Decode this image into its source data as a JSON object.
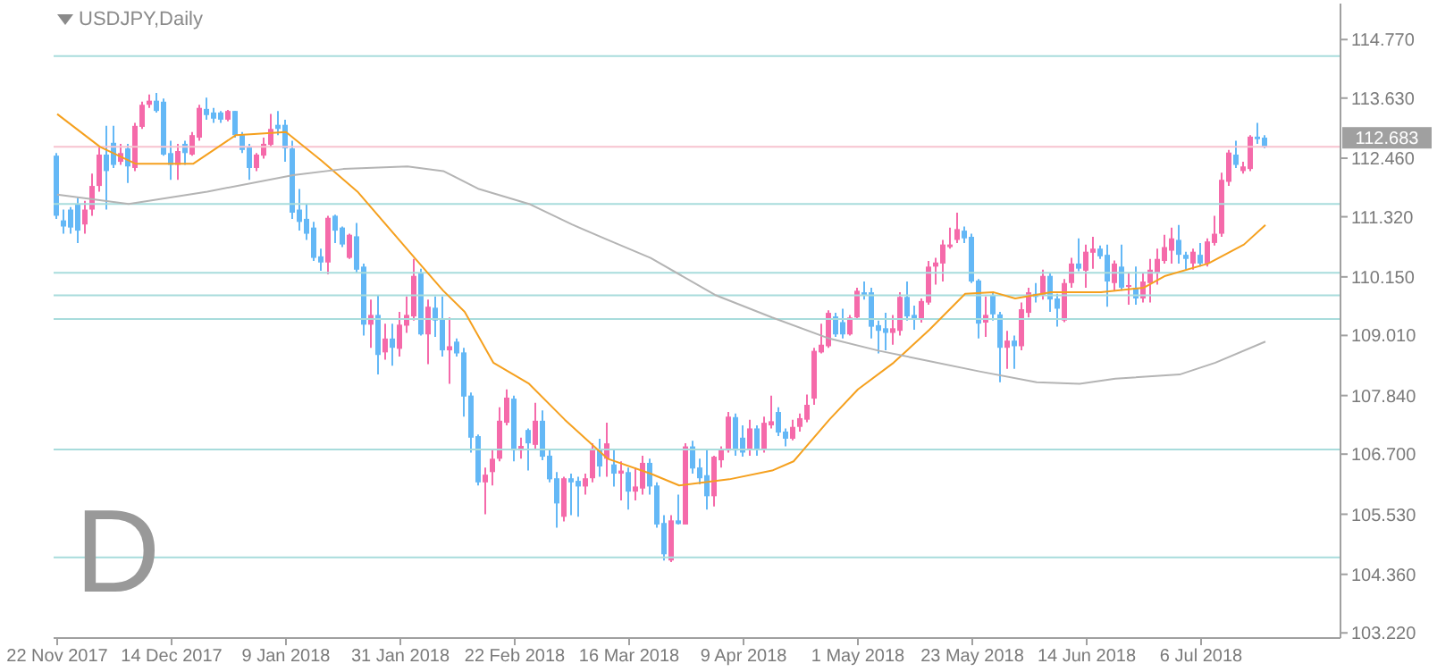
{
  "chart_data": {
    "type": "candlestick",
    "title": "USDJPY,Daily",
    "annotations": [
      "D"
    ],
    "categories": [
      "22 Nov 2017",
      null,
      null,
      null,
      null,
      null,
      null,
      null,
      null,
      null,
      null,
      null,
      null,
      null,
      null,
      null,
      "14 Dec 2017",
      null,
      null,
      null,
      null,
      null,
      null,
      null,
      null,
      null,
      null,
      null,
      null,
      null,
      null,
      null,
      "9 Jan 2018",
      null,
      null,
      null,
      null,
      null,
      null,
      null,
      null,
      null,
      null,
      null,
      null,
      null,
      null,
      null,
      "31 Jan 2018",
      null,
      null,
      null,
      null,
      null,
      null,
      null,
      null,
      null,
      null,
      null,
      null,
      null,
      null,
      null,
      "22 Feb 2018",
      null,
      null,
      null,
      null,
      null,
      null,
      null,
      null,
      null,
      null,
      null,
      null,
      null,
      null,
      null,
      "16 Mar 2018",
      null,
      null,
      null,
      null,
      null,
      null,
      null,
      null,
      null,
      null,
      null,
      null,
      null,
      null,
      null,
      "9 Apr 2018",
      null,
      null,
      null,
      null,
      null,
      null,
      null,
      null,
      null,
      null,
      null,
      null,
      null,
      null,
      null,
      "1 May 2018",
      null,
      null,
      null,
      null,
      null,
      null,
      null,
      null,
      null,
      null,
      null,
      null,
      null,
      null,
      null,
      "23 May 2018",
      null,
      null,
      null,
      null,
      null,
      null,
      null,
      null,
      null,
      null,
      null,
      null,
      null,
      null,
      null,
      "14 Jun 2018",
      null,
      null,
      null,
      null,
      null,
      null,
      null,
      null,
      null,
      null,
      null,
      null,
      null,
      null,
      null,
      "6 Jul 2018",
      null,
      null,
      null,
      null,
      null,
      null,
      null,
      null,
      null
    ],
    "series": [
      {
        "colors": [
          "#64b8f6",
          "#64b8f6",
          "#64b8f6",
          "#64b8f6",
          "#f56aaa",
          "#f56aaa",
          "#f56aaa",
          "#64b8f6",
          "#64b8f6",
          "#f56aaa",
          "#64b8f6",
          "#f56aaa",
          "#f56aaa",
          "#f56aaa",
          "#64b8f6",
          "#64b8f6",
          "#64b8f6",
          "#f56aaa",
          "#64b8f6",
          "#f56aaa",
          "#f56aaa",
          "#64b8f6",
          "#64b8f6",
          "#64b8f6",
          "#f56aaa",
          "#64b8f6",
          "#64b8f6",
          "#64b8f6",
          "#f56aaa",
          "#f56aaa",
          "#f56aaa",
          "#64b8f6",
          "#64b8f6",
          "#64b8f6",
          "#64b8f6",
          "#64b8f6",
          "#64b8f6",
          "#64b8f6",
          "#f56aaa",
          "#64b8f6",
          "#64b8f6",
          "#f56aaa",
          "#64b8f6",
          "#64b8f6",
          "#f56aaa",
          "#64b8f6",
          "#f56aaa",
          "#64b8f6",
          "#f56aaa",
          "#f56aaa",
          "#f56aaa",
          "#64b8f6",
          "#f56aaa",
          "#64b8f6",
          "#64b8f6",
          "#f56aaa",
          "#64b8f6",
          "#64b8f6",
          "#64b8f6",
          "#64b8f6",
          "#f56aaa",
          "#f56aaa",
          "#f56aaa",
          "#f56aaa",
          "#64b8f6",
          "#f56aaa",
          "#64b8f6",
          "#f56aaa",
          "#64b8f6",
          "#64b8f6",
          "#64b8f6",
          "#f56aaa",
          "#64b8f6",
          "#64b8f6",
          "#f56aaa",
          "#f56aaa",
          "#64b8f6",
          "#f56aaa",
          "#64b8f6",
          "#f56aaa",
          "#64b8f6",
          "#f56aaa",
          "#f56aaa",
          "#64b8f6",
          "#64b8f6",
          "#64b8f6",
          "#f56aaa",
          "#64b8f6",
          "#f56aaa",
          "#64b8f6",
          "#64b8f6",
          "#64b8f6",
          "#f56aaa",
          "#f56aaa",
          "#f56aaa",
          "#64b8f6",
          "#64b8f6",
          "#f56aaa",
          "#64b8f6",
          "#f56aaa",
          "#f56aaa",
          "#64b8f6",
          "#64b8f6",
          "#f56aaa",
          "#f56aaa",
          "#f56aaa",
          "#f56aaa",
          "#f56aaa",
          "#f56aaa",
          "#64b8f6",
          "#64b8f6",
          "#f56aaa",
          "#f56aaa",
          "#64b8f6",
          "#64b8f6",
          "#64b8f6",
          "#64b8f6",
          "#f56aaa",
          "#f56aaa",
          "#64b8f6",
          "#64b8f6",
          "#f56aaa",
          "#f56aaa",
          "#f56aaa",
          "#f56aaa",
          "#f56aaa",
          "#f56aaa",
          "#64b8f6",
          "#64b8f6",
          "#64b8f6",
          "#f56aaa",
          "#64b8f6",
          "#64b8f6",
          "#f56aaa",
          "#64b8f6",
          "#f56aaa",
          "#f56aaa",
          "#64b8f6",
          "#f56aaa",
          "#64b8f6",
          "#64b8f6",
          "#f56aaa",
          "#f56aaa",
          "#64b8f6",
          "#f56aaa",
          "#f56aaa",
          "#64b8f6",
          "#64b8f6",
          "#f56aaa",
          "#64b8f6",
          "#f56aaa",
          "#64b8f6",
          "#f56aaa",
          "#f56aaa",
          "#f56aaa",
          "#f56aaa",
          "#f56aaa",
          "#64b8f6",
          "#64b8f6",
          "#f56aaa",
          "#64b8f6",
          "#f56aaa",
          "#f56aaa",
          "#f56aaa",
          "#f56aaa",
          "#64b8f6",
          "#f56aaa",
          "#f56aaa",
          "#64b8f6",
          "#64b8f6"
        ],
        "ohlc": [
          [
            112.51,
            112.56,
            111.28,
            111.34
          ],
          [
            111.25,
            111.46,
            110.99,
            111.13
          ],
          [
            111.46,
            111.51,
            110.99,
            111.11
          ],
          [
            111.57,
            111.69,
            110.81,
            111.05
          ],
          [
            111.17,
            111.63,
            110.99,
            111.46
          ],
          [
            111.46,
            112.16,
            111.34,
            111.92
          ],
          [
            111.92,
            112.68,
            111.81,
            112.53
          ],
          [
            112.53,
            113.09,
            111.46,
            112.21
          ],
          [
            112.76,
            113.09,
            112.27,
            112.33
          ],
          [
            112.39,
            112.74,
            112.33,
            112.56
          ],
          [
            112.65,
            112.74,
            111.98,
            112.3
          ],
          [
            112.27,
            113.15,
            112.21,
            113.09
          ],
          [
            113.07,
            113.56,
            113.03,
            113.5
          ],
          [
            113.5,
            113.7,
            113.44,
            113.58
          ],
          [
            113.58,
            113.73,
            113.35,
            113.38
          ],
          [
            113.56,
            113.62,
            112.51,
            112.53
          ],
          [
            112.56,
            112.8,
            112.04,
            112.33
          ],
          [
            112.33,
            112.74,
            112.04,
            112.6
          ],
          [
            112.74,
            112.8,
            112.33,
            112.56
          ],
          [
            112.53,
            112.97,
            112.51,
            112.91
          ],
          [
            112.86,
            113.5,
            112.8,
            113.44
          ],
          [
            113.42,
            113.64,
            113.21,
            113.3
          ],
          [
            113.35,
            113.44,
            113.15,
            113.23
          ],
          [
            113.35,
            113.38,
            113.15,
            113.21
          ],
          [
            113.21,
            113.4,
            113.18,
            113.38
          ],
          [
            113.38,
            113.38,
            112.86,
            112.91
          ],
          [
            112.91,
            112.97,
            112.56,
            112.62
          ],
          [
            112.68,
            112.74,
            112.04,
            112.27
          ],
          [
            112.27,
            112.56,
            112.21,
            112.53
          ],
          [
            112.51,
            112.86,
            112.45,
            112.74
          ],
          [
            112.72,
            113.32,
            112.68,
            113.03
          ],
          [
            113.11,
            113.38,
            112.91,
            113.03
          ],
          [
            113.11,
            113.21,
            112.39,
            112.65
          ],
          [
            112.65,
            112.8,
            111.28,
            111.4
          ],
          [
            111.46,
            111.86,
            111.05,
            111.22
          ],
          [
            111.28,
            111.57,
            110.87,
            110.99
          ],
          [
            111.11,
            111.22,
            110.46,
            110.52
          ],
          [
            110.55,
            110.7,
            110.27,
            110.43
          ],
          [
            110.43,
            111.34,
            110.2,
            111.3
          ],
          [
            111.34,
            111.36,
            110.81,
            111.05
          ],
          [
            111.11,
            111.13,
            110.73,
            110.78
          ],
          [
            110.52,
            110.99,
            110.5,
            110.97
          ],
          [
            110.94,
            111.2,
            110.23,
            110.29
          ],
          [
            110.35,
            110.41,
            109.01,
            109.22
          ],
          [
            109.22,
            109.71,
            108.77,
            109.41
          ],
          [
            109.41,
            109.8,
            108.25,
            108.63
          ],
          [
            108.68,
            109.24,
            108.54,
            108.95
          ],
          [
            108.95,
            109.24,
            108.42,
            108.77
          ],
          [
            108.75,
            109.47,
            108.6,
            109.22
          ],
          [
            109.2,
            109.77,
            109.06,
            109.41
          ],
          [
            109.38,
            110.5,
            109.3,
            110.17
          ],
          [
            110.23,
            110.31,
            109.01,
            109.03
          ],
          [
            109.03,
            109.71,
            108.45,
            109.57
          ],
          [
            109.55,
            109.77,
            108.98,
            109.3
          ],
          [
            109.33,
            109.77,
            108.6,
            108.72
          ],
          [
            108.72,
            109.36,
            108.07,
            108.8
          ],
          [
            108.89,
            108.95,
            108.6,
            108.66
          ],
          [
            108.68,
            108.77,
            107.43,
            107.82
          ],
          [
            107.84,
            107.9,
            106.73,
            107.02
          ],
          [
            107.05,
            107.08,
            106.09,
            106.15
          ],
          [
            106.15,
            106.44,
            105.53,
            106.3
          ],
          [
            106.35,
            106.79,
            106.09,
            106.61
          ],
          [
            106.61,
            107.61,
            106.56,
            107.35
          ],
          [
            107.31,
            107.96,
            107.26,
            107.8
          ],
          [
            107.78,
            107.84,
            106.56,
            106.77
          ],
          [
            106.77,
            107.02,
            106.61,
            106.86
          ],
          [
            107.17,
            107.2,
            106.38,
            106.91
          ],
          [
            106.88,
            107.7,
            106.79,
            107.35
          ],
          [
            107.35,
            107.55,
            106.58,
            106.65
          ],
          [
            106.67,
            106.79,
            106.15,
            106.21
          ],
          [
            106.23,
            106.35,
            105.27,
            105.74
          ],
          [
            105.48,
            106.26,
            105.39,
            106.23
          ],
          [
            106.23,
            106.32,
            105.51,
            106.15
          ],
          [
            106.18,
            106.26,
            105.48,
            106.07
          ],
          [
            106.07,
            106.32,
            105.91,
            106.23
          ],
          [
            106.23,
            106.91,
            106.15,
            106.81
          ],
          [
            106.79,
            107.0,
            106.26,
            106.46
          ],
          [
            106.61,
            107.31,
            106.26,
            106.91
          ],
          [
            106.5,
            106.79,
            106.07,
            106.32
          ],
          [
            106.32,
            106.56,
            105.8,
            106.38
          ],
          [
            106.35,
            106.44,
            105.62,
            105.97
          ],
          [
            105.97,
            106.44,
            105.8,
            106.07
          ],
          [
            106.03,
            106.67,
            105.91,
            106.53
          ],
          [
            106.53,
            106.61,
            105.91,
            106.07
          ],
          [
            106.09,
            106.15,
            105.27,
            105.33
          ],
          [
            105.36,
            105.51,
            104.63,
            104.75
          ],
          [
            104.63,
            105.51,
            104.6,
            105.41
          ],
          [
            105.41,
            105.91,
            105.33,
            105.34
          ],
          [
            105.33,
            106.91,
            105.33,
            106.85
          ],
          [
            106.85,
            106.96,
            106.32,
            106.42
          ],
          [
            106.44,
            106.61,
            106.11,
            106.23
          ],
          [
            106.29,
            106.79,
            105.62,
            105.88
          ],
          [
            105.88,
            106.67,
            105.68,
            106.65
          ],
          [
            106.58,
            106.85,
            106.44,
            106.79
          ],
          [
            106.77,
            107.52,
            106.73,
            107.43
          ],
          [
            107.42,
            107.49,
            106.67,
            106.77
          ],
          [
            107.02,
            107.26,
            106.65,
            106.73
          ],
          [
            106.79,
            107.37,
            106.67,
            107.2
          ],
          [
            107.2,
            107.26,
            106.67,
            106.79
          ],
          [
            106.79,
            107.43,
            106.73,
            107.31
          ],
          [
            107.26,
            107.84,
            107.2,
            107.34
          ],
          [
            107.52,
            107.61,
            107.05,
            107.12
          ],
          [
            107.14,
            107.2,
            106.85,
            107.0
          ],
          [
            107.0,
            107.37,
            106.97,
            107.23
          ],
          [
            107.23,
            107.49,
            107.14,
            107.4
          ],
          [
            107.37,
            107.86,
            107.32,
            107.66
          ],
          [
            107.78,
            108.77,
            107.66,
            108.71
          ],
          [
            108.68,
            109.24,
            108.66,
            108.83
          ],
          [
            108.8,
            109.5,
            108.77,
            109.45
          ],
          [
            109.38,
            109.45,
            108.98,
            109.03
          ],
          [
            109.27,
            109.53,
            108.95,
            109.03
          ],
          [
            109.03,
            109.41,
            109.01,
            109.36
          ],
          [
            109.36,
            109.94,
            109.33,
            109.88
          ],
          [
            109.85,
            110.06,
            109.71,
            109.8
          ],
          [
            109.85,
            109.94,
            108.95,
            109.18
          ],
          [
            109.21,
            109.3,
            108.66,
            109.1
          ],
          [
            109.15,
            109.45,
            108.72,
            109.06
          ],
          [
            109.06,
            109.41,
            108.83,
            109.15
          ],
          [
            109.1,
            109.85,
            109.01,
            109.76
          ],
          [
            109.76,
            110.06,
            109.3,
            109.38
          ],
          [
            109.41,
            109.59,
            109.12,
            109.33
          ],
          [
            109.33,
            109.73,
            109.26,
            109.68
          ],
          [
            109.65,
            110.46,
            109.61,
            110.35
          ],
          [
            110.35,
            110.52,
            110.0,
            110.43
          ],
          [
            110.41,
            110.87,
            110.06,
            110.78
          ],
          [
            110.73,
            111.11,
            110.7,
            110.78
          ],
          [
            110.87,
            111.4,
            110.81,
            111.08
          ],
          [
            111.05,
            111.13,
            110.81,
            110.9
          ],
          [
            110.93,
            110.99,
            110.03,
            110.06
          ],
          [
            110.08,
            110.11,
            108.95,
            109.24
          ],
          [
            109.26,
            109.77,
            108.98,
            109.41
          ],
          [
            109.8,
            109.85,
            109.3,
            109.42
          ],
          [
            109.42,
            109.47,
            108.1,
            108.77
          ],
          [
            108.77,
            109.1,
            108.36,
            108.91
          ],
          [
            108.91,
            109.01,
            108.36,
            108.8
          ],
          [
            108.8,
            109.65,
            108.72,
            109.52
          ],
          [
            109.45,
            109.94,
            109.36,
            109.85
          ],
          [
            109.82,
            110.03,
            109.65,
            109.76
          ],
          [
            109.8,
            110.29,
            109.71,
            110.17
          ],
          [
            110.17,
            110.23,
            109.47,
            109.71
          ],
          [
            109.73,
            109.82,
            109.18,
            109.53
          ],
          [
            109.3,
            110.11,
            109.27,
            110.03
          ],
          [
            110.03,
            110.52,
            109.94,
            110.41
          ],
          [
            110.41,
            110.9,
            110.26,
            110.31
          ],
          [
            110.27,
            110.78,
            109.94,
            110.64
          ],
          [
            110.62,
            110.93,
            110.31,
            110.7
          ],
          [
            110.7,
            110.76,
            110.5,
            110.55
          ],
          [
            110.58,
            110.78,
            109.57,
            110.06
          ],
          [
            110.03,
            110.47,
            109.88,
            110.41
          ],
          [
            110.35,
            110.78,
            109.88,
            109.94
          ],
          [
            109.96,
            110.23,
            109.61,
            109.99
          ],
          [
            109.94,
            110.35,
            109.61,
            109.73
          ],
          [
            109.73,
            110.23,
            109.65,
            110.06
          ],
          [
            110.03,
            110.5,
            109.65,
            110.29
          ],
          [
            110.23,
            110.7,
            110.0,
            110.5
          ],
          [
            110.46,
            110.97,
            110.41,
            110.73
          ],
          [
            110.66,
            111.11,
            110.41,
            110.9
          ],
          [
            110.87,
            111.16,
            110.41,
            110.58
          ],
          [
            110.58,
            110.64,
            110.29,
            110.5
          ],
          [
            110.41,
            110.7,
            110.29,
            110.64
          ],
          [
            110.58,
            110.81,
            110.35,
            110.41
          ],
          [
            110.41,
            110.9,
            110.35,
            110.84
          ],
          [
            110.81,
            111.34,
            110.76,
            110.99
          ],
          [
            110.99,
            112.18,
            110.93,
            112.04
          ],
          [
            112.0,
            112.62,
            111.92,
            112.57
          ],
          [
            112.53,
            112.8,
            112.27,
            112.33
          ],
          [
            112.21,
            112.39,
            112.16,
            112.3
          ],
          [
            112.25,
            112.91,
            112.21,
            112.88
          ],
          [
            112.88,
            113.15,
            112.74,
            112.83
          ],
          [
            112.86,
            112.91,
            112.65,
            112.68
          ]
        ]
      },
      {
        "type": "line",
        "color": "#f5a01e",
        "values": [
          113.32,
          null,
          null,
          null,
          null,
          null,
          112.68,
          null,
          null,
          null,
          null,
          112.35,
          null,
          null,
          null,
          null,
          null,
          null,
          null,
          112.35,
          null,
          null,
          null,
          null,
          null,
          112.91,
          null,
          null,
          null,
          null,
          null,
          null,
          112.97,
          null,
          null,
          null,
          null,
          112.41,
          null,
          null,
          null,
          null,
          111.81,
          null,
          null,
          null,
          null,
          null,
          null,
          null,
          110.52,
          null,
          null,
          null,
          109.88,
          null,
          null,
          109.47,
          null,
          null,
          null,
          108.48,
          null,
          null,
          null,
          null,
          108.07,
          null,
          null,
          null,
          null,
          107.37,
          null,
          null,
          null,
          null,
          null,
          106.61,
          null,
          null,
          null,
          null,
          null,
          106.32,
          null,
          null,
          null,
          106.09,
          null,
          null,
          null,
          null,
          null,
          null,
          106.21,
          null,
          null,
          null,
          null,
          null,
          106.38,
          null,
          null,
          106.56,
          null,
          null,
          null,
          null,
          107.37,
          null,
          null,
          null,
          107.96,
          null,
          null,
          null,
          null,
          108.48,
          null,
          null,
          null,
          null,
          109.12,
          null,
          null,
          null,
          null,
          109.82,
          null,
          null,
          null,
          109.85,
          null,
          null,
          109.73,
          null,
          null,
          null,
          null,
          109.85,
          null,
          null,
          null,
          null,
          null,
          null,
          109.85,
          null,
          null,
          null,
          null,
          null,
          109.94,
          null,
          null,
          110.17,
          null,
          null,
          null,
          null,
          null,
          110.41,
          null,
          null,
          null,
          null,
          110.78,
          null,
          null,
          111.16
        ]
      },
      {
        "type": "line",
        "color": "#b4b4b4",
        "values": [
          111.75,
          null,
          null,
          null,
          null,
          null,
          null,
          null,
          null,
          null,
          111.57,
          null,
          null,
          null,
          null,
          null,
          null,
          null,
          null,
          null,
          null,
          111.81,
          null,
          null,
          null,
          null,
          null,
          null,
          null,
          null,
          null,
          null,
          null,
          112.13,
          null,
          null,
          null,
          null,
          null,
          null,
          112.25,
          null,
          null,
          null,
          null,
          null,
          null,
          null,
          null,
          112.3,
          null,
          null,
          null,
          null,
          112.21,
          null,
          null,
          null,
          null,
          111.86,
          null,
          null,
          null,
          null,
          null,
          null,
          111.57,
          null,
          null,
          null,
          null,
          null,
          111.17,
          null,
          null,
          null,
          null,
          110.87,
          null,
          null,
          null,
          null,
          null,
          110.52,
          null,
          null,
          null,
          null,
          null,
          null,
          null,
          null,
          109.8,
          null,
          null,
          null,
          null,
          null,
          null,
          null,
          109.36,
          null,
          null,
          null,
          null,
          null,
          null,
          null,
          108.95,
          null,
          null,
          null,
          null,
          null,
          null,
          108.71,
          null,
          null,
          null,
          null,
          null,
          108.54,
          null,
          null,
          null,
          null,
          null,
          null,
          null,
          108.31,
          null,
          null,
          null,
          null,
          null,
          null,
          null,
          108.1,
          null,
          null,
          null,
          null,
          null,
          108.07,
          null,
          null,
          null,
          null,
          108.17,
          null,
          null,
          null,
          null,
          null,
          null,
          null,
          null,
          108.25,
          null,
          null,
          null,
          null,
          108.48,
          null,
          null,
          null,
          null,
          null,
          null,
          108.89
        ]
      }
    ],
    "ylim": [
      103.12,
      115.47
    ],
    "yticks": [
      {
        "value": 103.22,
        "label": "103.220"
      },
      {
        "value": 104.36,
        "label": "104.360"
      },
      {
        "value": 105.53,
        "label": "105.530"
      },
      {
        "value": 106.7,
        "label": "106.700"
      },
      {
        "value": 107.84,
        "label": "107.840"
      },
      {
        "value": 109.01,
        "label": "109.010"
      },
      {
        "value": 110.15,
        "label": "110.150"
      },
      {
        "value": 111.32,
        "label": "111.320"
      },
      {
        "value": 112.46,
        "label": "112.460"
      },
      {
        "value": 113.63,
        "label": "113.630"
      },
      {
        "value": 114.77,
        "label": "114.770"
      }
    ],
    "ref_lines": [
      {
        "axis": "y",
        "value": 114.45,
        "color": "#a8dcdc"
      },
      {
        "axis": "y",
        "value": 111.57,
        "color": "#a8dcdc"
      },
      {
        "axis": "y",
        "value": 110.23,
        "color": "#a8dcdc"
      },
      {
        "axis": "y",
        "value": 109.79,
        "color": "#a8dcdc"
      },
      {
        "axis": "y",
        "value": 109.33,
        "color": "#a8dcdc"
      },
      {
        "axis": "y",
        "value": 106.79,
        "color": "#a8dcdc"
      },
      {
        "axis": "y",
        "value": 104.69,
        "color": "#a8dcdc"
      },
      {
        "axis": "y",
        "value": 112.683,
        "label": "112.683",
        "color": "#f7c3cf"
      }
    ]
  }
}
